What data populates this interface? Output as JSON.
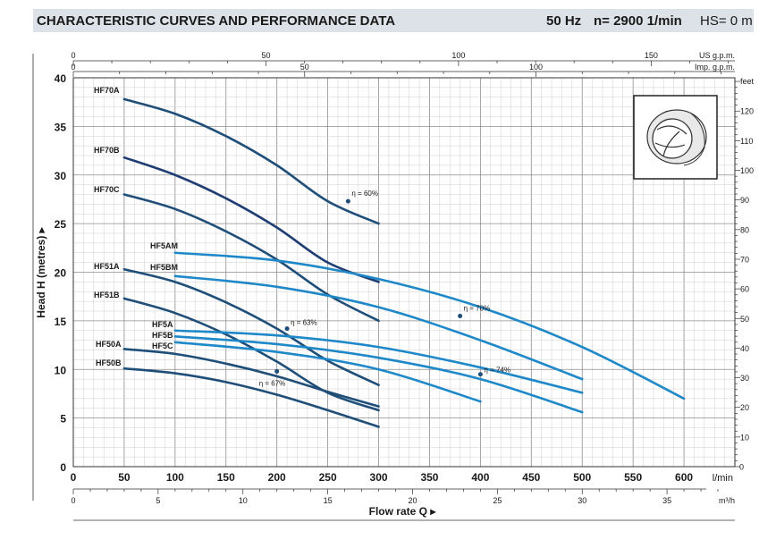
{
  "header": {
    "title": "CHARACTERISTIC CURVES AND PERFORMANCE DATA",
    "frequency": "50 Hz",
    "speed": "n= 2900  1/min",
    "hs": "HS= 0 m"
  },
  "chart_data": {
    "type": "line",
    "xlabel": "Flow rate  Q",
    "xunit": "l/min",
    "ylabel": "Head H (metres)",
    "xlim": [
      0,
      650
    ],
    "ylim": [
      0,
      40
    ],
    "x_ticks": [
      0,
      50,
      100,
      150,
      200,
      250,
      300,
      350,
      400,
      450,
      500,
      550,
      600
    ],
    "y_ticks": [
      0,
      5,
      10,
      15,
      20,
      25,
      30,
      35,
      40
    ],
    "grid": true,
    "secondary_axes": {
      "us_gpm": {
        "label": "US g.p.m.",
        "ticks": [
          0,
          50,
          100,
          150
        ]
      },
      "imp_gpm": {
        "label": "Imp. g.p.m.",
        "ticks": [
          0,
          50,
          100
        ]
      },
      "m3h": {
        "label": "m³/h",
        "ticks": [
          0,
          5,
          10,
          15,
          20,
          25,
          30,
          35
        ]
      },
      "feet": {
        "label": "feet",
        "ticks": [
          0,
          10,
          20,
          30,
          40,
          50,
          60,
          70,
          80,
          90,
          100,
          110,
          120
        ]
      }
    },
    "series": [
      {
        "name": "HF70A",
        "color": "#1f4e79",
        "x": [
          50,
          100,
          150,
          200,
          250,
          300
        ],
        "y": [
          37.8,
          36.3,
          34.0,
          31.0,
          27.3,
          25.0
        ]
      },
      {
        "name": "HF70B",
        "color": "#1f3d73",
        "x": [
          50,
          100,
          150,
          200,
          250,
          300
        ],
        "y": [
          31.8,
          30.0,
          27.6,
          24.6,
          21.0,
          19.0
        ]
      },
      {
        "name": "HF70C",
        "color": "#1f4e79",
        "x": [
          50,
          100,
          150,
          200,
          250,
          300
        ],
        "y": [
          28.0,
          26.5,
          24.2,
          21.3,
          17.7,
          15.0
        ]
      },
      {
        "name": "HF5AM",
        "color": "#1e88c8",
        "x": [
          100,
          200,
          300,
          400,
          500,
          600
        ],
        "y": [
          22.0,
          21.2,
          19.3,
          16.4,
          12.3,
          7.0
        ]
      },
      {
        "name": "HF5BM",
        "color": "#1e88c8",
        "x": [
          100,
          200,
          300,
          400,
          500
        ],
        "y": [
          19.6,
          18.5,
          16.4,
          13.0,
          9.0
        ]
      },
      {
        "name": "HF51A",
        "color": "#1f4e79",
        "x": [
          50,
          100,
          150,
          200,
          250,
          300
        ],
        "y": [
          20.3,
          19.0,
          16.9,
          14.2,
          10.9,
          8.4
        ]
      },
      {
        "name": "HF51B",
        "color": "#1f4e79",
        "x": [
          50,
          100,
          150,
          200,
          250,
          300
        ],
        "y": [
          17.3,
          15.8,
          13.6,
          10.8,
          7.6,
          5.8
        ]
      },
      {
        "name": "HF5A",
        "color": "#1e88c8",
        "x": [
          100,
          200,
          300,
          400,
          500
        ],
        "y": [
          14.0,
          13.5,
          12.3,
          10.2,
          7.6
        ]
      },
      {
        "name": "HF5B",
        "color": "#1e88c8",
        "x": [
          100,
          200,
          300,
          400,
          500
        ],
        "y": [
          13.4,
          12.6,
          11.2,
          9.0,
          5.6
        ]
      },
      {
        "name": "HF5C",
        "color": "#1e88c8",
        "x": [
          100,
          200,
          300,
          400
        ],
        "y": [
          12.8,
          11.8,
          10.0,
          6.7
        ]
      },
      {
        "name": "HF50A",
        "color": "#1f4e79",
        "x": [
          50,
          100,
          150,
          200,
          250,
          300
        ],
        "y": [
          12.1,
          11.6,
          10.6,
          9.3,
          7.7,
          6.2
        ]
      },
      {
        "name": "HF50B",
        "color": "#1f4e79",
        "x": [
          50,
          100,
          150,
          200,
          250,
          300
        ],
        "y": [
          10.1,
          9.6,
          8.7,
          7.4,
          5.8,
          4.1
        ]
      }
    ],
    "annotations": [
      {
        "text": "η = 60%",
        "x": 270,
        "y": 27.3
      },
      {
        "text": "η = 70%",
        "x": 380,
        "y": 15.5
      },
      {
        "text": "η = 63%",
        "x": 210,
        "y": 14.2
      },
      {
        "text": "η = 74%",
        "x": 400,
        "y": 9.5
      },
      {
        "text": "η = 67%",
        "x": 200,
        "y": 9.8
      }
    ]
  }
}
